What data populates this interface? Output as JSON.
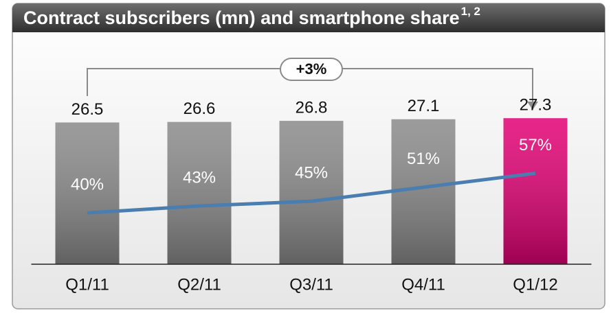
{
  "chart_data": {
    "type": "bar",
    "title": "Contract subscribers (mn) and smartphone share",
    "title_superscript": "1, 2",
    "annotation": "+3%",
    "categories": [
      "Q1/11",
      "Q2/11",
      "Q3/11",
      "Q4/11",
      "Q1/12"
    ],
    "series": [
      {
        "type": "bar",
        "values": [
          26.5,
          26.6,
          26.8,
          27.1,
          27.3
        ],
        "colors": [
          "#8a8a8a",
          "#8a8a8a",
          "#8a8a8a",
          "#8a8a8a",
          "#e20074"
        ]
      },
      {
        "type": "line",
        "axis": "y2",
        "values": [
          40,
          43,
          45,
          51,
          57
        ],
        "value_labels": [
          "40%",
          "43%",
          "45%",
          "51%",
          "57%"
        ],
        "color": "#4a7db0"
      }
    ],
    "ylim": [
      0,
      34
    ],
    "y2lim": [
      18,
      96
    ]
  }
}
